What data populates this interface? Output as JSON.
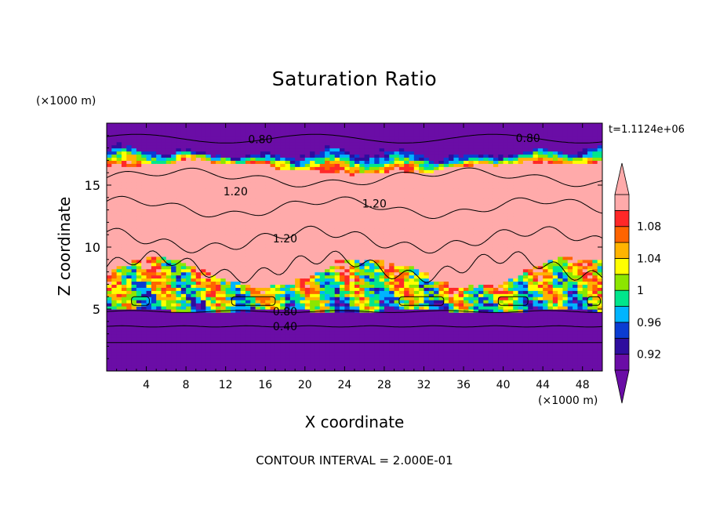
{
  "chart_data": {
    "type": "heatmap",
    "title": "Saturation Ratio",
    "xlabel": "X coordinate",
    "ylabel": "Z coordinate",
    "x_unit": "(×1000 m)",
    "y_unit": "(×1000 m)",
    "time_label": "t=1.1124e+06",
    "footer": "CONTOUR INTERVAL = 2.000E-01",
    "xlim": [
      0,
      50
    ],
    "ylim": [
      0,
      20
    ],
    "x_ticks": [
      4,
      8,
      12,
      16,
      20,
      24,
      28,
      32,
      36,
      40,
      44,
      48
    ],
    "y_ticks": [
      5,
      10,
      15
    ],
    "colorbar": {
      "levels": [
        0.9,
        0.92,
        0.94,
        0.96,
        0.98,
        1.0,
        1.02,
        1.04,
        1.06,
        1.08,
        1.1
      ],
      "tick_labels": [
        "0.92",
        "0.96",
        "1",
        "1.04",
        "1.08"
      ],
      "colors": [
        "#6a0da6",
        "#2e0d9e",
        "#0a3cd2",
        "#00b4ff",
        "#00e68c",
        "#8ce600",
        "#ffff00",
        "#ffb400",
        "#ff6400",
        "#ff2828",
        "#ffaaaa"
      ],
      "under_color": "#6a0da6",
      "over_color": "#ffaaaa"
    },
    "contour_labels": [
      {
        "text": "0.80",
        "x": 15.5,
        "z": 18.7
      },
      {
        "text": "0.80",
        "x": 42.5,
        "z": 18.8
      },
      {
        "text": "1.20",
        "x": 13.0,
        "z": 14.5
      },
      {
        "text": "1.20",
        "x": 27.0,
        "z": 13.5
      },
      {
        "text": "1.20",
        "x": 18.0,
        "z": 10.7
      },
      {
        "text": "0.80",
        "x": 18.0,
        "z": 4.8
      },
      {
        "text": "0.40",
        "x": 18.0,
        "z": 3.6
      }
    ],
    "grid": false
  }
}
